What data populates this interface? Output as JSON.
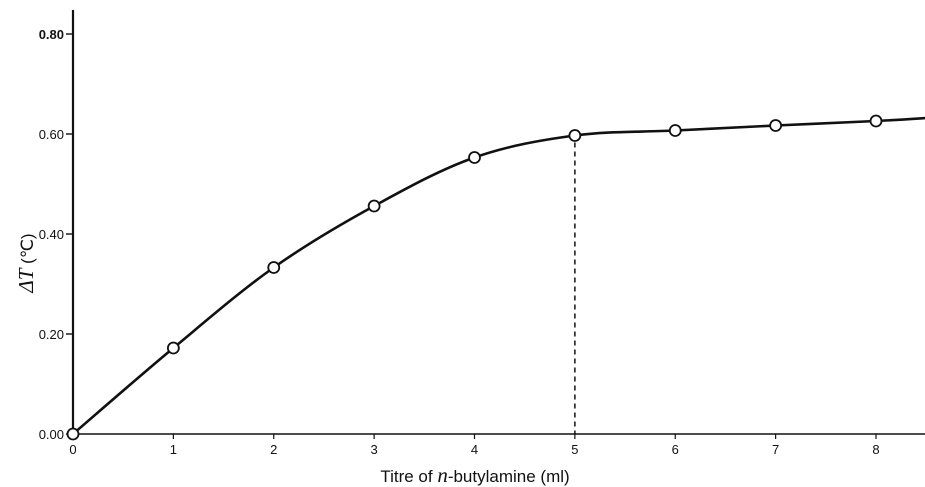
{
  "chart_data": {
    "type": "line",
    "title": "",
    "xlabel": {
      "prefix": "Titre of ",
      "italic": "n",
      "suffix": "-butylamine (ml)"
    },
    "ylabel": {
      "italic": "ΔT",
      "suffix": " (℃)"
    },
    "xlim": [
      0,
      8.5
    ],
    "ylim": [
      0,
      0.8
    ],
    "x_ticks": [
      {
        "value": 0,
        "label": "0"
      },
      {
        "value": 1,
        "label": "1"
      },
      {
        "value": 2,
        "label": "2"
      },
      {
        "value": 3,
        "label": "3"
      },
      {
        "value": 4,
        "label": "4"
      },
      {
        "value": 5,
        "label": "5"
      },
      {
        "value": 6,
        "label": "6"
      },
      {
        "value": 7,
        "label": "7"
      },
      {
        "value": 8,
        "label": "8"
      }
    ],
    "y_ticks": [
      {
        "value": 0.0,
        "label": "0.00"
      },
      {
        "value": 0.2,
        "label": "0.20"
      },
      {
        "value": 0.4,
        "label": "0.40"
      },
      {
        "value": 0.6,
        "label": "0.60"
      },
      {
        "value": 0.8,
        "label": "0.80"
      }
    ],
    "grid": false,
    "series": [
      {
        "x": [
          0,
          1,
          2,
          3,
          4,
          5,
          6,
          7,
          8
        ],
        "y": [
          0.0,
          0.172,
          0.333,
          0.456,
          0.553,
          0.597,
          0.607,
          0.617,
          0.626
        ],
        "curve_end": {
          "x": 8.5,
          "y": 0.632
        },
        "marker": "open-circle"
      }
    ],
    "annotations": [
      {
        "type": "vertical-dashed",
        "x": 5,
        "y_from": 0,
        "y_to": 0.597
      }
    ],
    "colors": {
      "line": "#111111",
      "marker_fill": "#ffffff",
      "background": "#ffffff"
    }
  }
}
